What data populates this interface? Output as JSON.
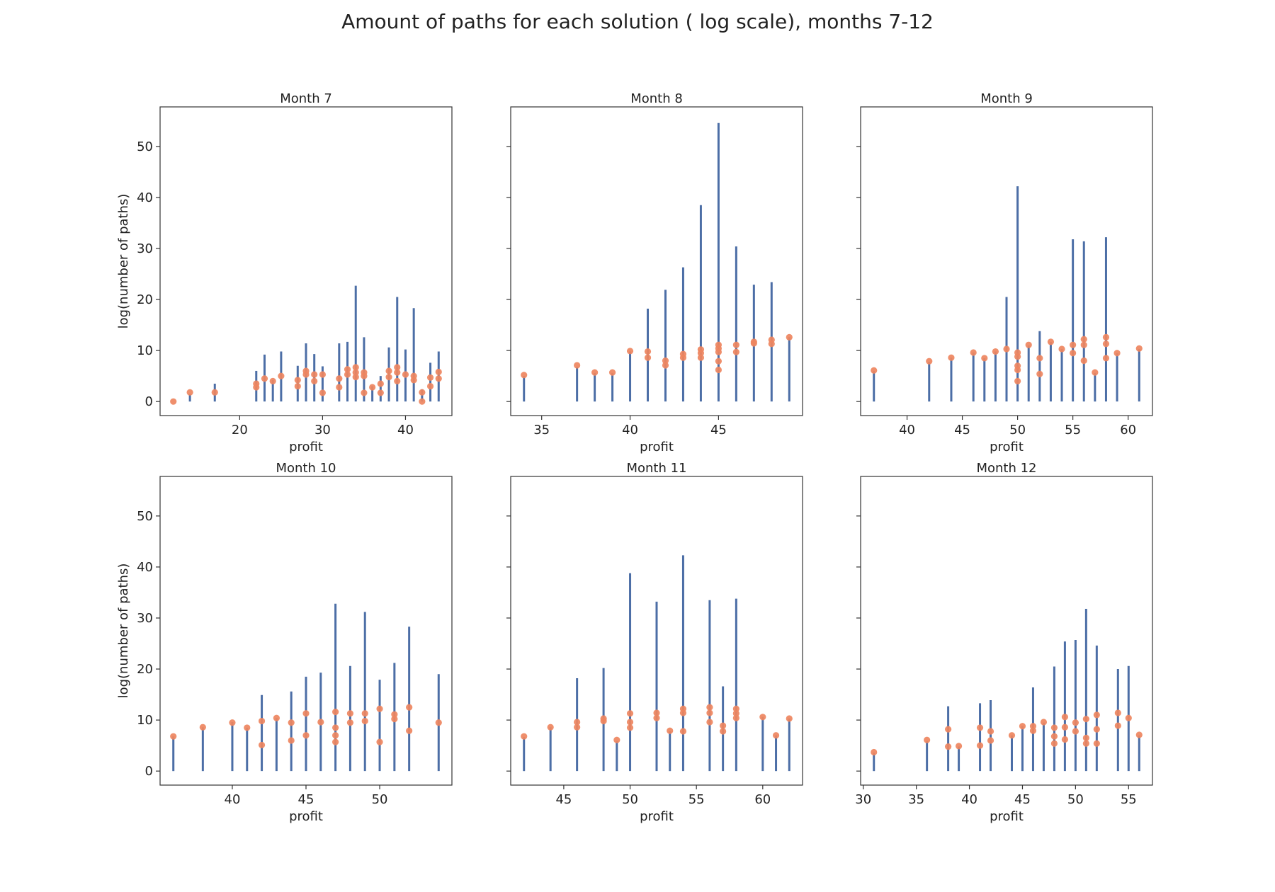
{
  "figure": {
    "title": "Amount of paths for each solution ( log scale), months 7-12"
  },
  "colors": {
    "stem": "#4c6ea6",
    "point": "#ee8560",
    "axis": "#333333"
  },
  "chart_data": [
    {
      "type": "scatter",
      "title": "Month 7",
      "xlabel": "profit",
      "ylabel": "log(number of paths)",
      "xlim": [
        10.4,
        45.6
      ],
      "ylim": [
        -2.75,
        57.75
      ],
      "xticks": [
        20,
        30,
        40
      ],
      "yticks": [
        0,
        10,
        20,
        30,
        40,
        50
      ],
      "stems": [
        [
          14,
          1.5
        ],
        [
          17,
          3.5
        ],
        [
          22,
          6.0
        ],
        [
          23,
          9.2
        ],
        [
          24,
          4.2
        ],
        [
          25,
          9.8
        ],
        [
          27,
          7.0
        ],
        [
          28,
          11.4
        ],
        [
          29,
          9.3
        ],
        [
          30,
          6.9
        ],
        [
          32,
          11.4
        ],
        [
          33,
          11.7
        ],
        [
          34,
          22.7
        ],
        [
          35,
          12.6
        ],
        [
          36,
          3.0
        ],
        [
          37,
          5.0
        ],
        [
          38,
          10.6
        ],
        [
          39,
          20.5
        ],
        [
          40,
          10.2
        ],
        [
          41,
          18.3
        ],
        [
          42,
          2.4
        ],
        [
          43,
          7.6
        ],
        [
          44,
          9.8
        ]
      ],
      "points": [
        [
          12,
          0
        ],
        [
          14,
          1.8
        ],
        [
          17,
          1.8
        ],
        [
          22,
          2.8
        ],
        [
          22,
          3.5
        ],
        [
          23,
          4.5
        ],
        [
          24,
          4.0
        ],
        [
          25,
          5.0
        ],
        [
          27,
          3.0
        ],
        [
          27,
          4.2
        ],
        [
          28,
          5.3
        ],
        [
          28,
          6.0
        ],
        [
          29,
          4.0
        ],
        [
          29,
          5.3
        ],
        [
          30,
          1.7
        ],
        [
          30,
          5.3
        ],
        [
          32,
          2.8
        ],
        [
          32,
          4.5
        ],
        [
          33,
          5.3
        ],
        [
          33,
          6.3
        ],
        [
          34,
          4.8
        ],
        [
          34,
          5.7
        ],
        [
          34,
          6.7
        ],
        [
          35,
          1.7
        ],
        [
          35,
          5.0
        ],
        [
          35,
          5.7
        ],
        [
          36,
          2.8
        ],
        [
          37,
          1.7
        ],
        [
          37,
          3.5
        ],
        [
          38,
          4.8
        ],
        [
          38,
          6.0
        ],
        [
          39,
          4.0
        ],
        [
          39,
          5.7
        ],
        [
          39,
          6.7
        ],
        [
          40,
          5.3
        ],
        [
          41,
          4.2
        ],
        [
          41,
          5.0
        ],
        [
          42,
          0
        ],
        [
          42,
          1.8
        ],
        [
          43,
          3.0
        ],
        [
          43,
          4.7
        ],
        [
          44,
          4.5
        ],
        [
          44,
          5.8
        ]
      ]
    },
    {
      "type": "scatter",
      "title": "Month 8",
      "xlabel": "profit",
      "ylabel": "",
      "xlim": [
        33.25,
        49.75
      ],
      "ylim": [
        -2.75,
        57.75
      ],
      "xticks": [
        35,
        40,
        45
      ],
      "yticks": [
        0,
        10,
        20,
        30,
        40,
        50
      ],
      "stems": [
        [
          34,
          5.0
        ],
        [
          37,
          6.8
        ],
        [
          38,
          5.6
        ],
        [
          39,
          5.6
        ],
        [
          40,
          9.8
        ],
        [
          41,
          18.2
        ],
        [
          42,
          21.9
        ],
        [
          43,
          26.3
        ],
        [
          44,
          38.5
        ],
        [
          45,
          54.6
        ],
        [
          46,
          30.4
        ],
        [
          47,
          22.9
        ],
        [
          48,
          23.4
        ],
        [
          49,
          12.6
        ]
      ],
      "points": [
        [
          34,
          5.2
        ],
        [
          37,
          7.1
        ],
        [
          38,
          5.7
        ],
        [
          39,
          5.7
        ],
        [
          40,
          9.9
        ],
        [
          41,
          8.6
        ],
        [
          41,
          9.8
        ],
        [
          42,
          7.1
        ],
        [
          42,
          8.0
        ],
        [
          43,
          8.6
        ],
        [
          43,
          9.3
        ],
        [
          44,
          8.6
        ],
        [
          44,
          9.5
        ],
        [
          44,
          10.2
        ],
        [
          45,
          6.2
        ],
        [
          45,
          7.9
        ],
        [
          45,
          9.7
        ],
        [
          45,
          10.4
        ],
        [
          45,
          11.1
        ],
        [
          46,
          9.7
        ],
        [
          46,
          11.1
        ],
        [
          47,
          11.4
        ],
        [
          47,
          11.7
        ],
        [
          48,
          11.3
        ],
        [
          48,
          12.1
        ],
        [
          49,
          12.6
        ]
      ]
    },
    {
      "type": "scatter",
      "title": "Month 9",
      "xlabel": "profit",
      "ylabel": "",
      "xlim": [
        35.8,
        62.2
      ],
      "ylim": [
        -2.75,
        57.75
      ],
      "xticks": [
        40,
        45,
        50,
        55,
        60
      ],
      "yticks": [
        0,
        10,
        20,
        30,
        40,
        50
      ],
      "stems": [
        [
          37,
          6.0
        ],
        [
          42,
          7.8
        ],
        [
          44,
          8.6
        ],
        [
          46,
          9.6
        ],
        [
          47,
          8.5
        ],
        [
          48,
          9.8
        ],
        [
          49,
          20.5
        ],
        [
          50,
          42.2
        ],
        [
          51,
          11.0
        ],
        [
          52,
          13.8
        ],
        [
          53,
          11.7
        ],
        [
          54,
          10.3
        ],
        [
          55,
          31.8
        ],
        [
          56,
          31.4
        ],
        [
          57,
          5.6
        ],
        [
          58,
          32.2
        ],
        [
          59,
          9.5
        ],
        [
          61,
          10.3
        ]
      ],
      "points": [
        [
          37,
          6.1
        ],
        [
          42,
          7.9
        ],
        [
          44,
          8.6
        ],
        [
          46,
          9.6
        ],
        [
          47,
          8.5
        ],
        [
          48,
          9.8
        ],
        [
          49,
          10.3
        ],
        [
          50,
          4.0
        ],
        [
          50,
          6.2
        ],
        [
          50,
          7.0
        ],
        [
          50,
          8.8
        ],
        [
          50,
          9.6
        ],
        [
          51,
          11.1
        ],
        [
          52,
          5.4
        ],
        [
          52,
          8.5
        ],
        [
          53,
          11.7
        ],
        [
          54,
          10.3
        ],
        [
          55,
          9.5
        ],
        [
          55,
          11.1
        ],
        [
          56,
          8.0
        ],
        [
          56,
          11.1
        ],
        [
          56,
          12.2
        ],
        [
          57,
          5.7
        ],
        [
          58,
          8.5
        ],
        [
          58,
          11.3
        ],
        [
          58,
          12.6
        ],
        [
          59,
          9.5
        ],
        [
          61,
          10.4
        ]
      ]
    },
    {
      "type": "scatter",
      "title": "Month 10",
      "xlabel": "profit",
      "ylabel": "log(number of paths)",
      "xlim": [
        35.1,
        54.9
      ],
      "ylim": [
        -2.75,
        57.75
      ],
      "xticks": [
        40,
        45,
        50
      ],
      "yticks": [
        0,
        10,
        20,
        30,
        40,
        50
      ],
      "stems": [
        [
          36,
          6.8
        ],
        [
          38,
          8.6
        ],
        [
          40,
          9.6
        ],
        [
          41,
          8.5
        ],
        [
          42,
          14.9
        ],
        [
          43,
          10.4
        ],
        [
          44,
          15.6
        ],
        [
          45,
          18.5
        ],
        [
          46,
          19.3
        ],
        [
          47,
          32.8
        ],
        [
          48,
          20.6
        ],
        [
          49,
          31.2
        ],
        [
          50,
          17.9
        ],
        [
          51,
          21.2
        ],
        [
          52,
          28.3
        ],
        [
          54,
          19.0
        ]
      ],
      "points": [
        [
          36,
          6.8
        ],
        [
          38,
          8.6
        ],
        [
          40,
          9.5
        ],
        [
          41,
          8.5
        ],
        [
          42,
          5.1
        ],
        [
          42,
          9.8
        ],
        [
          43,
          10.4
        ],
        [
          44,
          6.0
        ],
        [
          44,
          9.5
        ],
        [
          45,
          7.0
        ],
        [
          45,
          11.3
        ],
        [
          46,
          9.6
        ],
        [
          47,
          5.7
        ],
        [
          47,
          7.0
        ],
        [
          47,
          8.5
        ],
        [
          47,
          11.6
        ],
        [
          48,
          9.5
        ],
        [
          48,
          11.3
        ],
        [
          49,
          9.8
        ],
        [
          49,
          11.3
        ],
        [
          50,
          5.7
        ],
        [
          50,
          12.2
        ],
        [
          51,
          10.2
        ],
        [
          51,
          11.1
        ],
        [
          52,
          7.9
        ],
        [
          52,
          12.5
        ],
        [
          54,
          9.5
        ]
      ]
    },
    {
      "type": "scatter",
      "title": "Month 11",
      "xlabel": "profit",
      "ylabel": "",
      "xlim": [
        41,
        63
      ],
      "ylim": [
        -2.75,
        57.75
      ],
      "xticks": [
        45,
        50,
        55,
        60
      ],
      "yticks": [
        0,
        10,
        20,
        30,
        40,
        50
      ],
      "stems": [
        [
          42,
          6.7
        ],
        [
          44,
          8.6
        ],
        [
          46,
          18.2
        ],
        [
          48,
          20.2
        ],
        [
          49,
          5.9
        ],
        [
          50,
          38.8
        ],
        [
          52,
          33.2
        ],
        [
          53,
          7.8
        ],
        [
          54,
          42.3
        ],
        [
          56,
          33.5
        ],
        [
          57,
          16.6
        ],
        [
          58,
          33.8
        ],
        [
          60,
          10.6
        ],
        [
          61,
          7.0
        ],
        [
          62,
          10.3
        ]
      ],
      "points": [
        [
          42,
          6.8
        ],
        [
          44,
          8.6
        ],
        [
          46,
          8.6
        ],
        [
          46,
          9.6
        ],
        [
          48,
          9.8
        ],
        [
          48,
          10.3
        ],
        [
          49,
          6.1
        ],
        [
          50,
          8.5
        ],
        [
          50,
          9.6
        ],
        [
          50,
          11.3
        ],
        [
          52,
          10.4
        ],
        [
          52,
          11.4
        ],
        [
          53,
          7.9
        ],
        [
          54,
          7.8
        ],
        [
          54,
          11.4
        ],
        [
          54,
          12.2
        ],
        [
          56,
          9.6
        ],
        [
          56,
          11.4
        ],
        [
          56,
          12.5
        ],
        [
          57,
          7.8
        ],
        [
          57,
          8.9
        ],
        [
          58,
          10.4
        ],
        [
          58,
          11.3
        ],
        [
          58,
          12.2
        ],
        [
          60,
          10.6
        ],
        [
          61,
          7.0
        ],
        [
          62,
          10.3
        ]
      ]
    },
    {
      "type": "scatter",
      "title": "Month 12",
      "xlabel": "profit",
      "ylabel": "",
      "xlim": [
        29.75,
        57.25
      ],
      "ylim": [
        -2.75,
        57.75
      ],
      "xticks": [
        30,
        35,
        40,
        45,
        50,
        55
      ],
      "yticks": [
        0,
        10,
        20,
        30,
        40,
        50
      ],
      "stems": [
        [
          31,
          3.6
        ],
        [
          36,
          5.9
        ],
        [
          38,
          12.7
        ],
        [
          39,
          4.8
        ],
        [
          41,
          13.3
        ],
        [
          42,
          13.9
        ],
        [
          44,
          7.0
        ],
        [
          45,
          8.8
        ],
        [
          46,
          16.4
        ],
        [
          47,
          9.5
        ],
        [
          48,
          20.5
        ],
        [
          49,
          25.4
        ],
        [
          50,
          25.7
        ],
        [
          51,
          31.8
        ],
        [
          52,
          24.6
        ],
        [
          54,
          20.0
        ],
        [
          55,
          20.6
        ],
        [
          56,
          7.0
        ]
      ],
      "points": [
        [
          31,
          3.7
        ],
        [
          36,
          6.1
        ],
        [
          38,
          4.8
        ],
        [
          38,
          8.2
        ],
        [
          39,
          4.9
        ],
        [
          41,
          5.0
        ],
        [
          41,
          8.5
        ],
        [
          42,
          6.0
        ],
        [
          42,
          7.8
        ],
        [
          44,
          7.0
        ],
        [
          45,
          8.8
        ],
        [
          46,
          7.9
        ],
        [
          46,
          8.8
        ],
        [
          47,
          9.6
        ],
        [
          48,
          5.4
        ],
        [
          48,
          6.8
        ],
        [
          48,
          8.5
        ],
        [
          49,
          6.2
        ],
        [
          49,
          8.6
        ],
        [
          49,
          10.6
        ],
        [
          50,
          7.8
        ],
        [
          50,
          9.5
        ],
        [
          51,
          5.4
        ],
        [
          51,
          6.5
        ],
        [
          51,
          10.2
        ],
        [
          52,
          5.4
        ],
        [
          52,
          8.2
        ],
        [
          52,
          11.0
        ],
        [
          54,
          8.9
        ],
        [
          54,
          11.4
        ],
        [
          55,
          10.4
        ],
        [
          56,
          7.1
        ]
      ]
    }
  ]
}
